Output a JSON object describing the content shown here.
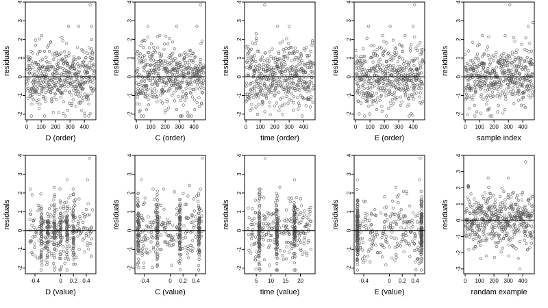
{
  "chart_data": [
    {
      "type": "scatter",
      "xlabel": "D (order)",
      "ylabel": "residuals",
      "xlim": [
        -10,
        480
      ],
      "ylim": [
        -2.3,
        4
      ],
      "xticks": [
        0,
        100,
        200,
        300,
        400
      ],
      "yticks": [
        -2,
        -1,
        0,
        1,
        2,
        3,
        4
      ],
      "reference_line_y": 0,
      "x_distribution": "index",
      "n_points": 470,
      "seed": 11,
      "outliers": [
        [
          440,
          3.85
        ],
        [
          360,
          2.7
        ],
        [
          450,
          2.7
        ],
        [
          290,
          2.7
        ]
      ]
    },
    {
      "type": "scatter",
      "xlabel": "C (order)",
      "ylabel": "residuals",
      "xlim": [
        -10,
        480
      ],
      "ylim": [
        -2.3,
        4
      ],
      "xticks": [
        0,
        100,
        200,
        300,
        400
      ],
      "yticks": [
        -2,
        -1,
        0,
        1,
        2,
        3,
        4
      ],
      "reference_line_y": 0,
      "x_distribution": "index",
      "n_points": 470,
      "seed": 23,
      "outliers": [
        [
          445,
          3.85
        ],
        [
          80,
          2.7
        ],
        [
          280,
          2.7
        ],
        [
          420,
          2.7
        ]
      ]
    },
    {
      "type": "scatter",
      "xlabel": "time (order)",
      "ylabel": "residuals",
      "xlim": [
        -10,
        480
      ],
      "ylim": [
        -2.3,
        4
      ],
      "xticks": [
        0,
        100,
        200,
        300,
        400
      ],
      "yticks": [
        -2,
        -1,
        0,
        1,
        2,
        3,
        4
      ],
      "reference_line_y": 0,
      "x_distribution": "index",
      "n_points": 470,
      "seed": 37,
      "outliers": [
        [
          130,
          3.85
        ],
        [
          220,
          2.7
        ],
        [
          300,
          2.7
        ],
        [
          70,
          2.3
        ]
      ]
    },
    {
      "type": "scatter",
      "xlabel": "E (order)",
      "ylabel": "residuals",
      "xlim": [
        -10,
        480
      ],
      "ylim": [
        -2.3,
        4
      ],
      "xticks": [
        0,
        100,
        200,
        300,
        400
      ],
      "yticks": [
        -2,
        -1,
        0,
        1,
        2,
        3,
        4
      ],
      "reference_line_y": 0,
      "x_distribution": "index",
      "n_points": 470,
      "seed": 41,
      "outliers": [
        [
          410,
          3.85
        ],
        [
          90,
          2.7
        ],
        [
          240,
          2.7
        ],
        [
          400,
          2.7
        ]
      ]
    },
    {
      "type": "scatter",
      "xlabel": "sample index",
      "ylabel": "residuals",
      "xlim": [
        -10,
        480
      ],
      "ylim": [
        -2.3,
        4
      ],
      "xticks": [
        0,
        100,
        200,
        300,
        400
      ],
      "yticks": [
        -2,
        -1,
        0,
        1,
        2,
        3,
        4
      ],
      "reference_line_y": 0,
      "x_distribution": "index",
      "n_points": 470,
      "seed": 53,
      "outliers": [
        [
          310,
          3.85
        ],
        [
          440,
          2.7
        ],
        [
          470,
          2.9
        ],
        [
          120,
          2.2
        ]
      ]
    },
    {
      "type": "scatter",
      "xlabel": "D (value)",
      "ylabel": "residuals",
      "xlim": [
        -0.55,
        0.55
      ],
      "ylim": [
        -2.3,
        4
      ],
      "xticks": [
        -0.4,
        0,
        0.2,
        0.4
      ],
      "yticks": [
        -2,
        -1,
        0,
        1,
        2,
        3,
        4
      ],
      "reference_line_y": 0,
      "x_distribution": "clustered",
      "cluster_centers": [
        -0.3,
        -0.2,
        -0.1,
        0,
        0.1,
        0.2
      ],
      "x_range": [
        -0.5,
        0.5
      ],
      "n_points": 470,
      "seed": 61,
      "outliers": [
        [
          0.45,
          3.85
        ],
        [
          0.42,
          2.7
        ],
        [
          0.1,
          2.7
        ],
        [
          -0.1,
          2.3
        ]
      ]
    },
    {
      "type": "scatter",
      "xlabel": "C (value)",
      "ylabel": "residuals",
      "xlim": [
        -0.55,
        0.55
      ],
      "ylim": [
        -2.3,
        4
      ],
      "xticks": [
        -0.4,
        0,
        0.2,
        0.4
      ],
      "yticks": [
        -2,
        -1,
        0,
        1,
        2,
        3,
        4
      ],
      "reference_line_y": 0,
      "x_distribution": "clustered",
      "cluster_centers": [
        -0.5,
        -0.2,
        0.15,
        0.45
      ],
      "x_range": [
        -0.5,
        0.5
      ],
      "n_points": 470,
      "seed": 67,
      "outliers": [
        [
          0.5,
          3.85
        ],
        [
          -0.45,
          2.7
        ],
        [
          0.3,
          2.4
        ],
        [
          -0.1,
          2.2
        ]
      ]
    },
    {
      "type": "scatter",
      "xlabel": "time (value)",
      "ylabel": "residuals",
      "xlim": [
        1,
        25
      ],
      "ylim": [
        -2.3,
        4
      ],
      "xticks": [
        5,
        10,
        15,
        20
      ],
      "yticks": [
        -2,
        -1,
        0,
        1,
        2,
        3,
        4
      ],
      "reference_line_y": 0,
      "x_distribution": "clustered",
      "cluster_centers": [
        6,
        12,
        18
      ],
      "x_range": [
        2,
        24
      ],
      "n_points": 470,
      "seed": 71,
      "outliers": [
        [
          8,
          3.85
        ],
        [
          18,
          2.7
        ],
        [
          13,
          2.3
        ],
        [
          6,
          2.2
        ]
      ]
    },
    {
      "type": "scatter",
      "xlabel": "E (value)",
      "ylabel": "residuals",
      "xlim": [
        -0.55,
        0.55
      ],
      "ylim": [
        -2.3,
        4
      ],
      "xticks": [
        -0.4,
        0,
        0.2,
        0.4
      ],
      "yticks": [
        -2,
        -1,
        0,
        1,
        2,
        3,
        4
      ],
      "reference_line_y": 0,
      "x_distribution": "edge",
      "cluster_centers": [
        -0.5,
        0.5
      ],
      "x_range": [
        -0.5,
        0.5
      ],
      "n_points": 470,
      "seed": 79,
      "outliers": [
        [
          0.48,
          3.85
        ],
        [
          -0.5,
          2.7
        ],
        [
          0.47,
          2.7
        ],
        [
          0.1,
          2.3
        ]
      ]
    },
    {
      "type": "scatter",
      "xlabel": "randam example",
      "ylabel": "residuals",
      "xlim": [
        -10,
        480
      ],
      "ylim": [
        -3.3,
        4
      ],
      "xticks": [
        0,
        100,
        200,
        300,
        400
      ],
      "yticks": [
        -3,
        -2,
        -1,
        0,
        1,
        2,
        3,
        4
      ],
      "reference_line_y": 0,
      "x_distribution": "index",
      "n_points": 470,
      "seed": 83,
      "outliers": [
        [
          420,
          3.6
        ],
        [
          160,
          2.6
        ],
        [
          300,
          2.6
        ],
        [
          380,
          -3.0
        ]
      ]
    }
  ]
}
